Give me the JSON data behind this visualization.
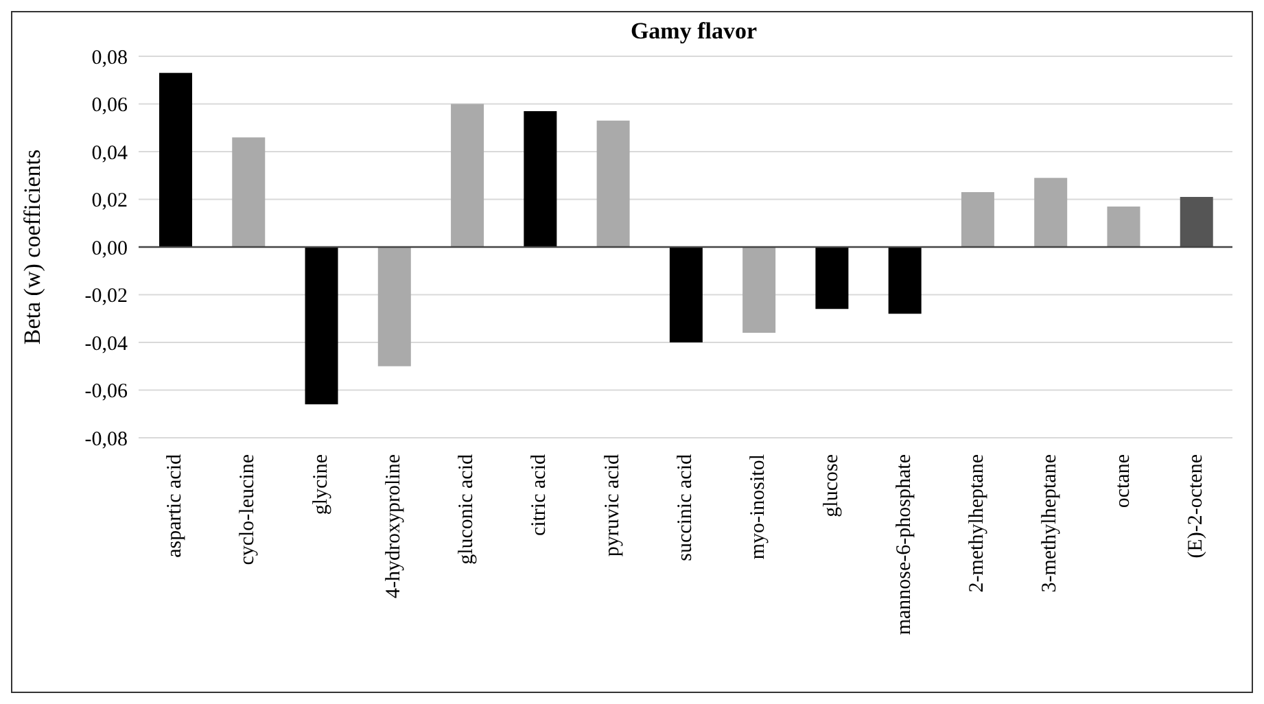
{
  "chart_data": {
    "type": "bar",
    "title": "Gamy flavor",
    "ylabel": "Beta (w) coefficients",
    "categories": [
      "aspartic acid",
      "cyclo-leucine",
      "glycine",
      "4-hydroxyproline",
      "gluconic acid",
      "citric acid",
      "pyruvic acid",
      "succinic acid",
      "myo-inositol",
      "glucose",
      "mannose-6-phosphate",
      "2-methylheptane",
      "3-methylheptane",
      "octane",
      "(E)-2-octene"
    ],
    "values": [
      0.073,
      0.046,
      -0.066,
      -0.05,
      0.06,
      0.057,
      0.053,
      -0.04,
      -0.036,
      -0.026,
      -0.028,
      0.023,
      0.029,
      0.017,
      0.021
    ],
    "colors": [
      "#000000",
      "#aaaaaa",
      "#000000",
      "#aaaaaa",
      "#aaaaaa",
      "#000000",
      "#aaaaaa",
      "#000000",
      "#aaaaaa",
      "#000000",
      "#000000",
      "#aaaaaa",
      "#aaaaaa",
      "#aaaaaa",
      "#555555"
    ],
    "ylim": [
      -0.08,
      0.08
    ],
    "yticks": [
      {
        "value": -0.08,
        "label": "-0,08"
      },
      {
        "value": -0.06,
        "label": "-0,06"
      },
      {
        "value": -0.04,
        "label": "-0,04"
      },
      {
        "value": -0.02,
        "label": "-0,02"
      },
      {
        "value": 0,
        "label": "0,00"
      },
      {
        "value": 0.02,
        "label": "0,02"
      },
      {
        "value": 0.04,
        "label": "0,04"
      },
      {
        "value": 0.06,
        "label": "0,06"
      },
      {
        "value": 0.08,
        "label": "0,08"
      }
    ],
    "grid": "y",
    "legend": false
  }
}
